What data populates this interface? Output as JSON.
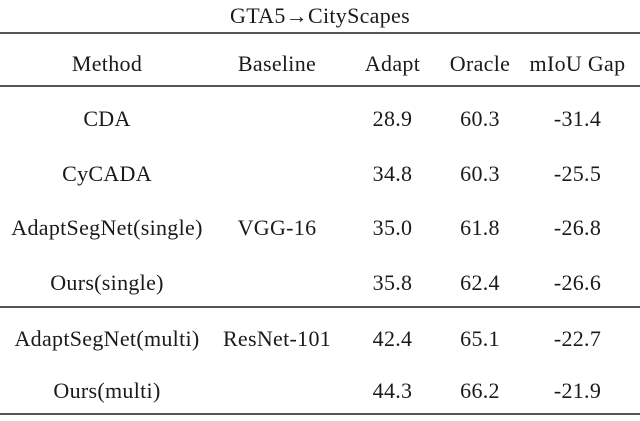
{
  "table": {
    "title": "GTA5→CityScapes",
    "columns": [
      "Method",
      "Baseline",
      "Adapt",
      "Oracle",
      "mIoU Gap"
    ],
    "groups": [
      {
        "rows": [
          {
            "method": "CDA",
            "baseline": "",
            "adapt": "28.9",
            "oracle": "60.3",
            "gap": "-31.4"
          },
          {
            "method": "CyCADA",
            "baseline": "",
            "adapt": "34.8",
            "oracle": "60.3",
            "gap": "-25.5"
          },
          {
            "method": "AdaptSegNet(single)",
            "baseline": "VGG-16",
            "adapt": "35.0",
            "oracle": "61.8",
            "gap": "-26.8"
          },
          {
            "method": "Ours(single)",
            "baseline": "",
            "adapt": "35.8",
            "oracle": "62.4",
            "gap": "-26.6"
          }
        ]
      },
      {
        "rows": [
          {
            "method": "AdaptSegNet(multi)",
            "baseline": "ResNet-101",
            "adapt": "42.4",
            "oracle": "65.1",
            "gap": "-22.7"
          },
          {
            "method": "Ours(multi)",
            "baseline": "",
            "adapt": "44.3",
            "oracle": "66.2",
            "gap": "-21.9"
          }
        ]
      }
    ]
  },
  "chart_data": {
    "type": "table",
    "title": "GTA5→CityScapes",
    "columns": [
      "Method",
      "Baseline",
      "Adapt",
      "Oracle",
      "mIoU Gap"
    ],
    "rows": [
      [
        "CDA",
        "VGG-16",
        28.9,
        60.3,
        -31.4
      ],
      [
        "CyCADA",
        "VGG-16",
        34.8,
        60.3,
        -25.5
      ],
      [
        "AdaptSegNet(single)",
        "VGG-16",
        35.0,
        61.8,
        -26.8
      ],
      [
        "Ours(single)",
        "VGG-16",
        35.8,
        62.4,
        -26.6
      ],
      [
        "AdaptSegNet(multi)",
        "ResNet-101",
        42.4,
        65.1,
        -22.7
      ],
      [
        "Ours(multi)",
        "ResNet-101",
        44.3,
        66.2,
        -21.9
      ]
    ]
  },
  "colors": {
    "background": "#ffffff",
    "text": "#1a1a1a",
    "rule": "#555555"
  }
}
